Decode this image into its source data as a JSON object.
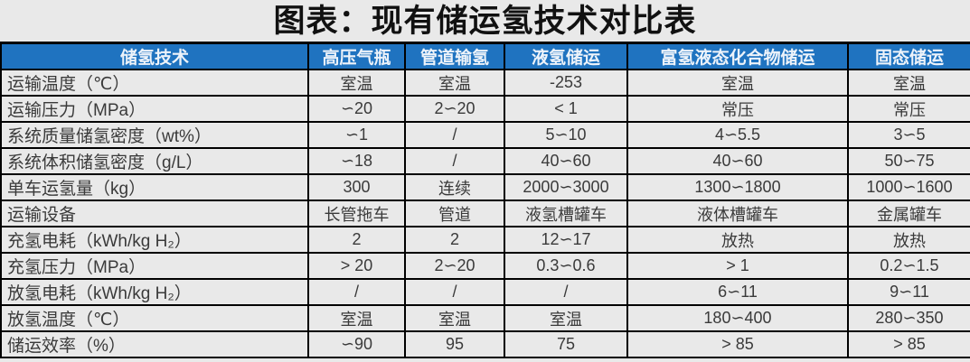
{
  "title": "图表：现有储运氢技术对比表",
  "colors": {
    "header_bg": "#1f73c0",
    "header_text": "#edf3fa",
    "page_bg": "#e9e9e9",
    "grid_border": "#000000",
    "body_text": "#3a3a3a",
    "title_text": "#111111"
  },
  "table": {
    "columns": [
      "储氢技术",
      "高压气瓶",
      "管道输氢",
      "液氢储运",
      "富氢液态化合物储运",
      "固态储运"
    ],
    "rows": [
      {
        "label": "运输温度（℃）",
        "values": [
          "室温",
          "室温",
          "-253",
          "室温",
          "室温"
        ]
      },
      {
        "label": "运输压力（MPa）",
        "values": [
          "∽20",
          "2∽20",
          "< 1",
          "常压",
          "常压"
        ]
      },
      {
        "label": "系统质量储氢密度（wt%）",
        "values": [
          "∽1",
          "/",
          "5∽10",
          "4∽5.5",
          "3∽5"
        ]
      },
      {
        "label": "系统体积储氢密度（g/L）",
        "values": [
          "∽18",
          "/",
          "40∽60",
          "40∽60",
          "50∽75"
        ]
      },
      {
        "label": "单车运氢量（kg）",
        "values": [
          "300",
          "连续",
          "2000∽3000",
          "1300∽1800",
          "1000∽1600"
        ]
      },
      {
        "label": "运输设备",
        "values": [
          "长管拖车",
          "管道",
          "液氢槽罐车",
          "液体槽罐车",
          "金属罐车"
        ]
      },
      {
        "label": "充氢电耗（kWh/kg H₂）",
        "values": [
          "2",
          "2",
          "12∽17",
          "放热",
          "放热"
        ]
      },
      {
        "label": "充氢压力（MPa）",
        "values": [
          "> 20",
          "2∽20",
          "0.3∽0.6",
          "> 1",
          "0.2∽1.5"
        ]
      },
      {
        "label": "放氢电耗（kWh/kg H₂）",
        "values": [
          "/",
          "/",
          "/",
          "6∽11",
          "9∽11"
        ]
      },
      {
        "label": "放氢温度（℃）",
        "values": [
          "室温",
          "室温",
          "室温",
          "180∽400",
          "280∽350"
        ]
      },
      {
        "label": "储运效率（%）",
        "values": [
          "∽90",
          "95",
          "75",
          "> 85",
          "> 85"
        ]
      }
    ]
  }
}
